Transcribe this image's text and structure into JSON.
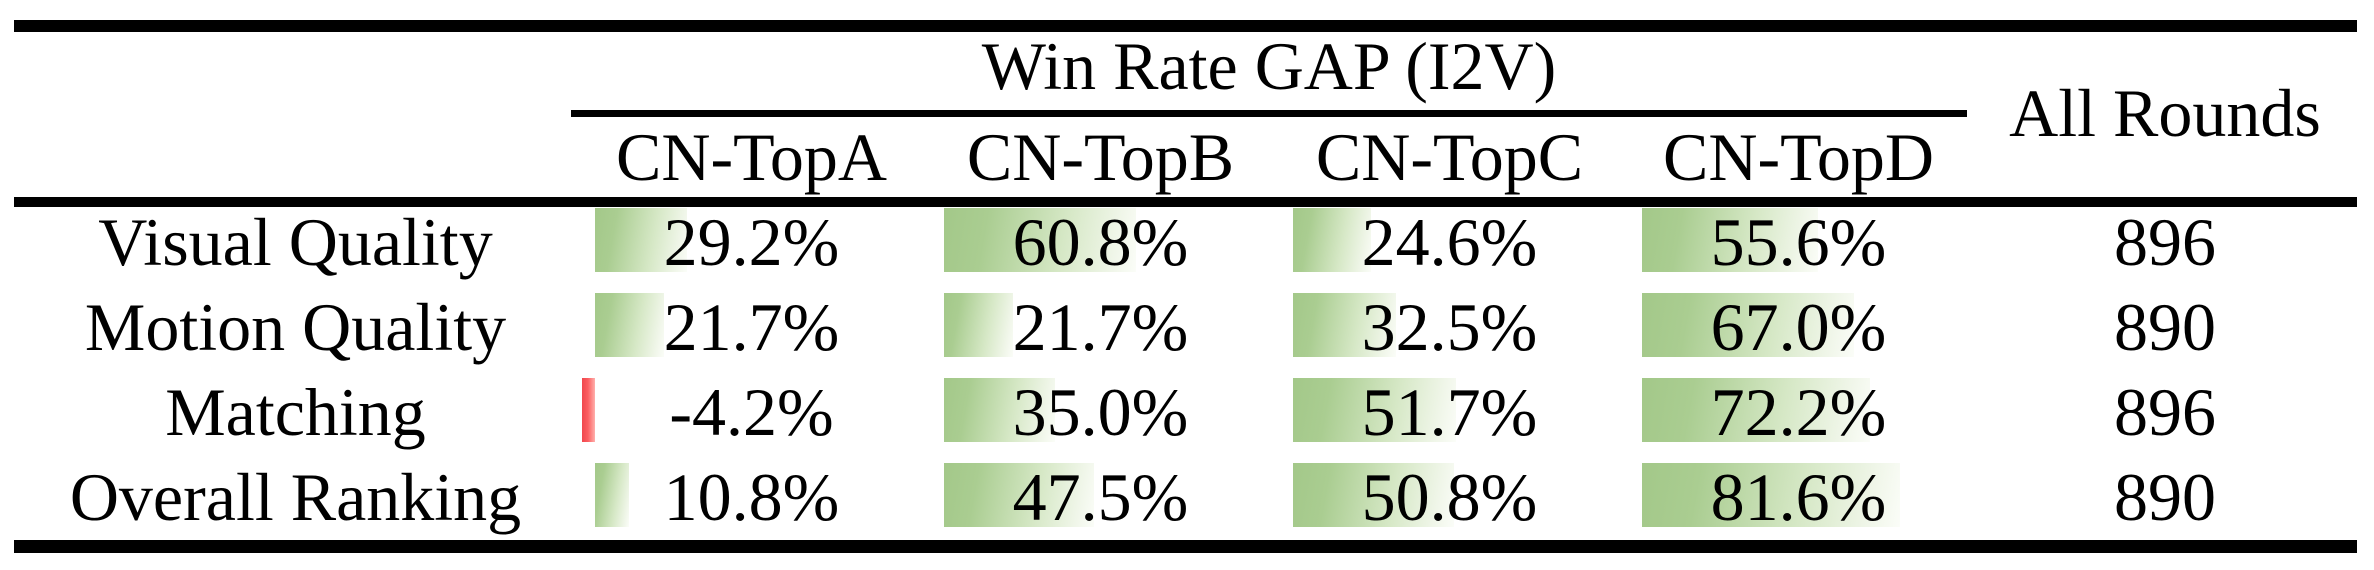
{
  "table": {
    "group_header": "Win Rate GAP (I2V)",
    "all_rounds_header": "All Rounds",
    "columns": [
      "CN-TopA",
      "CN-TopB",
      "CN-TopC",
      "CN-TopD"
    ],
    "rows": [
      {
        "label": "Visual Quality",
        "values": [
          "29.2%",
          "60.8%",
          "24.6%",
          "55.6%"
        ],
        "bar_percents": [
          29.2,
          60.8,
          24.6,
          55.6
        ],
        "all_rounds": "896"
      },
      {
        "label": "Motion Quality",
        "values": [
          "21.7%",
          "21.7%",
          "32.5%",
          "67.0%"
        ],
        "bar_percents": [
          21.7,
          21.7,
          32.5,
          67.0
        ],
        "all_rounds": "890"
      },
      {
        "label": "Matching",
        "values": [
          "-4.2%",
          "35.0%",
          "51.7%",
          "72.2%"
        ],
        "bar_percents": [
          -4.2,
          35.0,
          51.7,
          72.2
        ],
        "all_rounds": "896"
      },
      {
        "label": "Overall Ranking",
        "values": [
          "10.8%",
          "47.5%",
          "50.8%",
          "81.6%"
        ],
        "bar_percents": [
          10.8,
          47.5,
          50.8,
          81.6
        ],
        "all_rounds": "890"
      }
    ],
    "colors": {
      "positive_bar_green": "#a3c889",
      "negative_bar_red": "#f0474d",
      "rule_black": "#000000"
    }
  },
  "chart_data": {
    "type": "table",
    "title": "Win Rate GAP (I2V)",
    "categories": [
      "CN-TopA",
      "CN-TopB",
      "CN-TopC",
      "CN-TopD",
      "All Rounds"
    ],
    "series": [
      {
        "name": "Visual Quality",
        "values": [
          29.2,
          60.8,
          24.6,
          55.6,
          896
        ]
      },
      {
        "name": "Motion Quality",
        "values": [
          21.7,
          21.7,
          32.5,
          67.0,
          890
        ]
      },
      {
        "name": "Matching",
        "values": [
          -4.2,
          35.0,
          51.7,
          72.2,
          896
        ]
      },
      {
        "name": "Overall Ranking",
        "values": [
          10.8,
          47.5,
          50.8,
          81.6,
          890
        ]
      }
    ],
    "notes": "Cells contain in-cell data bars; green gradient bars for positive win-rate gaps, thin red bar for the single negative value (-4.2%)."
  }
}
